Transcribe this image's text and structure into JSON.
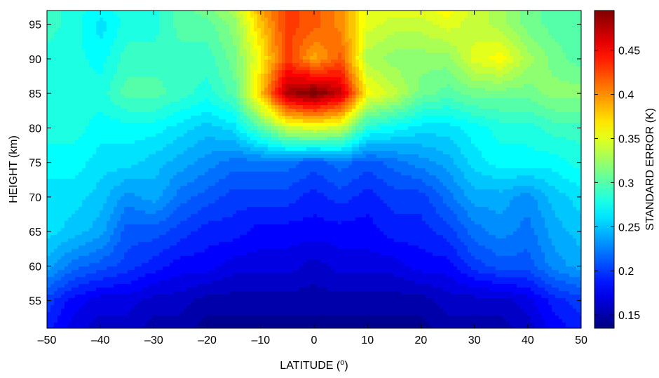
{
  "chart_data": {
    "type": "heatmap",
    "title": "",
    "xlabel": "LATITUDE (",
    "xlabel_sup": "o",
    "xlabel_end": ")",
    "ylabel": "HEIGHT (km)",
    "colorbar_label": "STANDARD ERROR (K)",
    "colormap": "jet",
    "x": [
      -50,
      -45,
      -40,
      -35,
      -30,
      -25,
      -20,
      -15,
      -10,
      -5,
      0,
      5,
      10,
      15,
      20,
      25,
      30,
      35,
      40,
      45,
      50
    ],
    "y": [
      51,
      55,
      60,
      65,
      70,
      75,
      80,
      85,
      90,
      95,
      97
    ],
    "z": [
      [
        0.19,
        0.17,
        0.16,
        0.16,
        0.15,
        0.15,
        0.14,
        0.14,
        0.14,
        0.14,
        0.14,
        0.14,
        0.14,
        0.14,
        0.14,
        0.15,
        0.15,
        0.15,
        0.16,
        0.18,
        0.19
      ],
      [
        0.2,
        0.18,
        0.17,
        0.17,
        0.16,
        0.16,
        0.15,
        0.15,
        0.15,
        0.15,
        0.15,
        0.15,
        0.15,
        0.15,
        0.15,
        0.16,
        0.16,
        0.16,
        0.17,
        0.19,
        0.2
      ],
      [
        0.24,
        0.22,
        0.21,
        0.2,
        0.19,
        0.18,
        0.18,
        0.17,
        0.17,
        0.17,
        0.16,
        0.17,
        0.17,
        0.17,
        0.18,
        0.18,
        0.2,
        0.21,
        0.21,
        0.23,
        0.24
      ],
      [
        0.26,
        0.25,
        0.24,
        0.21,
        0.21,
        0.2,
        0.19,
        0.19,
        0.18,
        0.18,
        0.18,
        0.18,
        0.18,
        0.19,
        0.19,
        0.2,
        0.22,
        0.23,
        0.22,
        0.24,
        0.25
      ],
      [
        0.26,
        0.26,
        0.25,
        0.23,
        0.24,
        0.22,
        0.21,
        0.2,
        0.2,
        0.2,
        0.19,
        0.2,
        0.19,
        0.2,
        0.2,
        0.22,
        0.24,
        0.24,
        0.23,
        0.25,
        0.26
      ],
      [
        0.27,
        0.27,
        0.26,
        0.26,
        0.25,
        0.24,
        0.23,
        0.22,
        0.22,
        0.22,
        0.21,
        0.22,
        0.21,
        0.22,
        0.23,
        0.24,
        0.26,
        0.27,
        0.27,
        0.27,
        0.28
      ],
      [
        0.28,
        0.28,
        0.27,
        0.27,
        0.27,
        0.26,
        0.25,
        0.26,
        0.3,
        0.34,
        0.35,
        0.34,
        0.28,
        0.27,
        0.26,
        0.26,
        0.27,
        0.28,
        0.28,
        0.29,
        0.29
      ],
      [
        0.28,
        0.28,
        0.28,
        0.3,
        0.3,
        0.29,
        0.28,
        0.3,
        0.38,
        0.48,
        0.5,
        0.47,
        0.36,
        0.34,
        0.31,
        0.3,
        0.31,
        0.31,
        0.31,
        0.32,
        0.32
      ],
      [
        0.28,
        0.28,
        0.27,
        0.29,
        0.29,
        0.29,
        0.29,
        0.31,
        0.36,
        0.43,
        0.39,
        0.42,
        0.33,
        0.32,
        0.32,
        0.32,
        0.35,
        0.36,
        0.33,
        0.31,
        0.3
      ],
      [
        0.29,
        0.28,
        0.26,
        0.28,
        0.28,
        0.3,
        0.3,
        0.32,
        0.38,
        0.43,
        0.42,
        0.4,
        0.35,
        0.34,
        0.34,
        0.35,
        0.34,
        0.33,
        0.31,
        0.3,
        0.3
      ],
      [
        0.29,
        0.28,
        0.27,
        0.28,
        0.28,
        0.3,
        0.31,
        0.33,
        0.39,
        0.43,
        0.42,
        0.4,
        0.35,
        0.35,
        0.35,
        0.36,
        0.34,
        0.33,
        0.31,
        0.3,
        0.3
      ]
    ],
    "xlim": [
      -50,
      50
    ],
    "ylim": [
      51,
      97
    ],
    "xticks": [
      "–50",
      "–40",
      "–30",
      "–20",
      "–10",
      "0",
      "10",
      "20",
      "30",
      "40",
      "50"
    ],
    "xtick_values": [
      -50,
      -40,
      -30,
      -20,
      -10,
      0,
      10,
      20,
      30,
      40,
      50
    ],
    "yticks": [
      "55",
      "60",
      "65",
      "70",
      "75",
      "80",
      "85",
      "90",
      "95"
    ],
    "ytick_values": [
      55,
      60,
      65,
      70,
      75,
      80,
      85,
      90,
      95
    ],
    "colorbar_range": [
      0.135,
      0.495
    ],
    "colorbar_ticks": [
      "0.15",
      "0.2",
      "0.25",
      "0.3",
      "0.35",
      "0.4",
      "0.45"
    ],
    "colorbar_tick_values": [
      0.15,
      0.2,
      0.25,
      0.3,
      0.35,
      0.4,
      0.45
    ],
    "grid": false,
    "legend": "none"
  }
}
